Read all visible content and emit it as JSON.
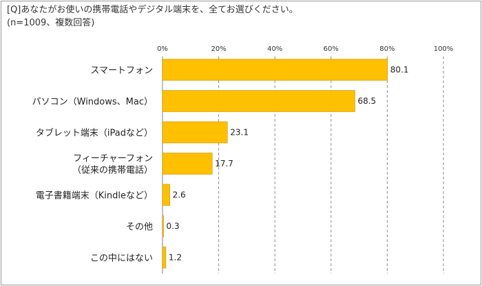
{
  "question": "[Q]あなたがお使いの携帯電話やデジタル端末を、全てお選びください。",
  "note": "(n=1009、複数回答)",
  "chart_data": {
    "type": "bar",
    "orientation": "horizontal",
    "title": "",
    "xlabel": "",
    "ylabel": "",
    "xlim": [
      0,
      100
    ],
    "ticks": [
      "0%",
      "20%",
      "40%",
      "60%",
      "80%",
      "100%"
    ],
    "tick_values": [
      0,
      20,
      40,
      60,
      80,
      100
    ],
    "grid": "vertical dashed",
    "categories": [
      [
        "スマートフォン"
      ],
      [
        "パソコン（Windows、Mac）"
      ],
      [
        "タブレット端末（iPadなど）"
      ],
      [
        "フィーチャーフォン",
        "（従来の携帯電話）"
      ],
      [
        "電子書籍端末（Kindleなど）"
      ],
      [
        "その他"
      ],
      [
        "この中にはない"
      ]
    ],
    "values": [
      80.1,
      68.5,
      23.1,
      17.7,
      2.6,
      0.3,
      1.2
    ],
    "value_labels": [
      "80.1",
      "68.5",
      "23.1",
      "17.7",
      "2.6",
      "0.3",
      "1.2"
    ],
    "bar_color": "#ffc000"
  }
}
